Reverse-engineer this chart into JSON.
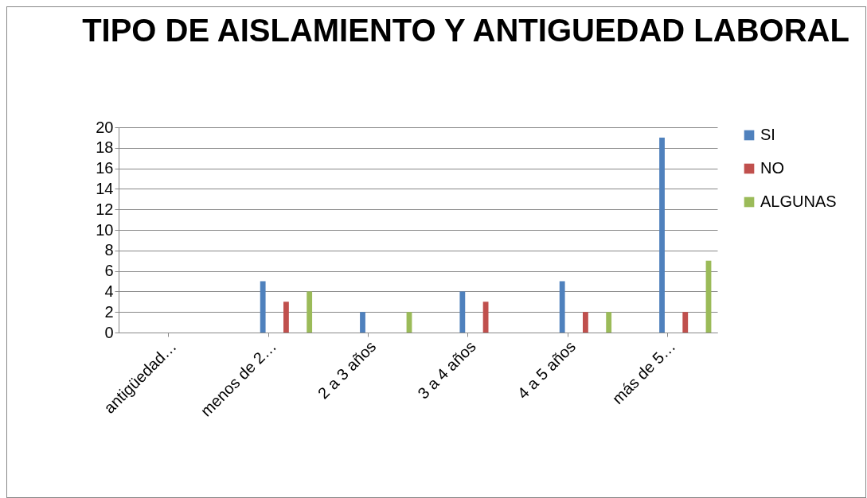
{
  "chart_data": {
    "type": "bar",
    "title": "TIPO DE AISLAMIENTO Y ANTIGUEDAD\nLABORAL",
    "categories": [
      "antigüedad…",
      "menos de 2…",
      "2 a 3 años",
      "3 a 4 años",
      "4 a 5 años",
      "más de 5…"
    ],
    "series": [
      {
        "name": "SI",
        "color": "#4f81bd",
        "values": [
          null,
          5,
          2,
          4,
          5,
          19
        ]
      },
      {
        "name": "NO",
        "color": "#c0504d",
        "values": [
          null,
          3,
          null,
          3,
          2,
          2
        ]
      },
      {
        "name": "ALGUNAS",
        "color": "#9bbb59",
        "values": [
          null,
          4,
          2,
          null,
          2,
          7
        ]
      }
    ],
    "ylim": [
      0,
      20
    ],
    "yticks": [
      0,
      2,
      4,
      6,
      8,
      10,
      12,
      14,
      16,
      18,
      20
    ],
    "grid": "y",
    "legend": "right"
  }
}
